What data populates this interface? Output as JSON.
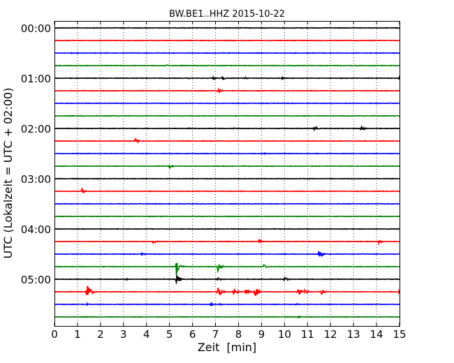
{
  "chart_data": {
    "type": "line",
    "title": "BW.BE1..HHZ 2015-10-22",
    "xlabel": "Zeit  [min]",
    "ylabel": "UTC (Lokalzeit = UTC + 02:00)",
    "xlim": [
      0,
      15
    ],
    "x_ticks": [
      "0",
      "1",
      "2",
      "3",
      "4",
      "5",
      "6",
      "7",
      "8",
      "9",
      "10",
      "11",
      "12",
      "13",
      "14",
      "15"
    ],
    "y_ticks": [
      "00:00",
      "01:00",
      "02:00",
      "03:00",
      "04:00",
      "05:00"
    ],
    "trace_interval_min": 15,
    "grid": "vertical-dotted",
    "series_colors": [
      "#000000",
      "#ff0000",
      "#0000ff",
      "#008000"
    ],
    "series": [
      {
        "start": "00:00",
        "events": [
          {
            "t": 1.2,
            "amp": 0.03
          },
          {
            "t": 9.5,
            "amp": 0.03
          }
        ]
      },
      {
        "start": "00:15",
        "events": []
      },
      {
        "start": "00:30",
        "events": [
          {
            "t": 0.7,
            "amp": 0.15
          },
          {
            "t": 5.2,
            "amp": 0.06
          },
          {
            "t": 7.0,
            "amp": 0.08
          }
        ]
      },
      {
        "start": "00:45",
        "events": [
          {
            "t": 4.9,
            "amp": 0.15
          }
        ]
      },
      {
        "start": "01:00",
        "events": [
          {
            "t": 5.8,
            "amp": 0.12
          },
          {
            "t": 6.9,
            "amp": 0.18
          },
          {
            "t": 7.3,
            "amp": 0.3
          },
          {
            "t": 8.3,
            "amp": 0.12
          },
          {
            "t": 9.9,
            "amp": 0.15
          },
          {
            "t": 15.0,
            "amp": 0.35
          }
        ]
      },
      {
        "start": "01:15",
        "events": [
          {
            "t": 7.1,
            "amp": 0.35
          }
        ]
      },
      {
        "start": "01:30",
        "events": []
      },
      {
        "start": "01:45",
        "events": []
      },
      {
        "start": "02:00",
        "events": [
          {
            "t": 5.8,
            "amp": 0.1
          },
          {
            "t": 7.8,
            "amp": 0.1
          },
          {
            "t": 11.3,
            "amp": 0.35
          },
          {
            "t": 13.3,
            "amp": 0.45
          }
        ]
      },
      {
        "start": "02:15",
        "events": [
          {
            "t": 3.5,
            "amp": 0.4
          }
        ]
      },
      {
        "start": "02:30",
        "events": [
          {
            "t": 9.1,
            "amp": 0.15
          }
        ]
      },
      {
        "start": "02:45",
        "events": [
          {
            "t": 5.0,
            "amp": 0.3
          }
        ]
      },
      {
        "start": "03:00",
        "events": []
      },
      {
        "start": "03:15",
        "events": [
          {
            "t": 1.2,
            "amp": 0.4
          }
        ]
      },
      {
        "start": "03:30",
        "events": []
      },
      {
        "start": "03:45",
        "events": [
          {
            "t": 6.0,
            "amp": 0.1
          }
        ]
      },
      {
        "start": "04:00",
        "events": []
      },
      {
        "start": "04:15",
        "events": [
          {
            "t": 4.3,
            "amp": 0.25
          },
          {
            "t": 8.9,
            "amp": 0.35
          },
          {
            "t": 14.1,
            "amp": 0.3
          }
        ]
      },
      {
        "start": "04:30",
        "events": [
          {
            "t": 3.8,
            "amp": 0.2
          },
          {
            "t": 11.5,
            "amp": 0.55
          }
        ]
      },
      {
        "start": "04:45",
        "events": [
          {
            "t": 5.3,
            "amp": 1.3
          },
          {
            "t": 7.1,
            "amp": 0.7
          },
          {
            "t": 9.1,
            "amp": 0.3
          }
        ]
      },
      {
        "start": "05:00",
        "events": [
          {
            "t": 3.1,
            "amp": 0.12
          },
          {
            "t": 5.3,
            "amp": 0.8
          },
          {
            "t": 7.1,
            "amp": 0.25
          },
          {
            "t": 10.0,
            "amp": 0.35
          }
        ]
      },
      {
        "start": "05:15",
        "events": [
          {
            "t": 1.4,
            "amp": 1.6
          },
          {
            "t": 7.1,
            "amp": 1.0
          },
          {
            "t": 7.8,
            "amp": 0.6
          },
          {
            "t": 8.3,
            "amp": 0.5
          },
          {
            "t": 8.7,
            "amp": 0.9
          },
          {
            "t": 10.6,
            "amp": 0.6
          },
          {
            "t": 10.9,
            "amp": 0.4
          },
          {
            "t": 11.6,
            "amp": 0.4
          },
          {
            "t": 15.0,
            "amp": 0.5
          }
        ]
      },
      {
        "start": "05:30",
        "events": [
          {
            "t": 1.4,
            "amp": 0.15
          },
          {
            "t": 6.8,
            "amp": 0.2
          },
          {
            "t": 7.2,
            "amp": 0.15
          },
          {
            "t": 10.5,
            "amp": 0.12
          }
        ]
      },
      {
        "start": "05:45",
        "events": [
          {
            "t": 1.4,
            "amp": 0.1
          },
          {
            "t": 10.6,
            "amp": 0.15
          }
        ]
      }
    ]
  }
}
